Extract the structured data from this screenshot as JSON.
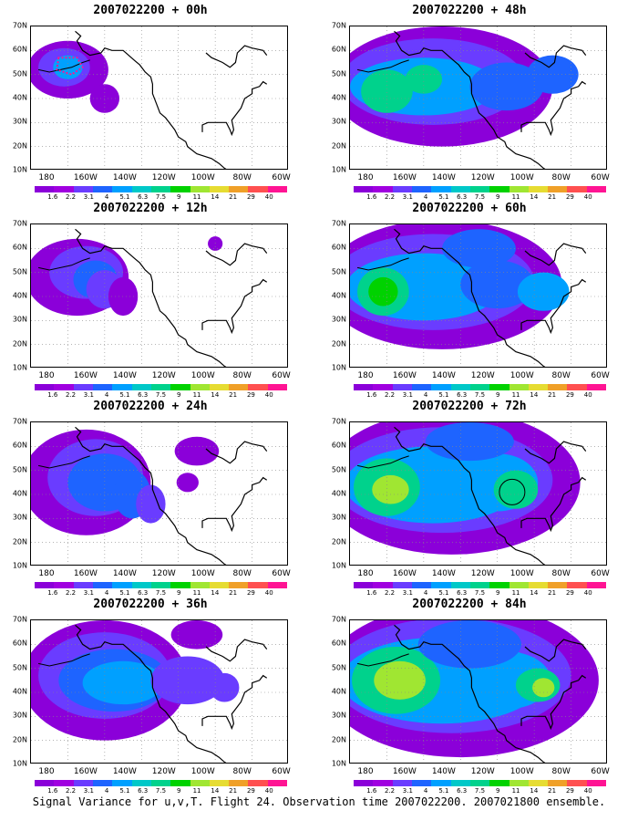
{
  "caption": "Signal Variance for u,v,T. Flight 24. Observation time 2007022200. 2007021800 ensemble.",
  "lat_labels": [
    "70N",
    "60N",
    "50N",
    "40N",
    "30N",
    "20N",
    "10N"
  ],
  "lon_labels": [
    "180",
    "160W",
    "140W",
    "120W",
    "100W",
    "80W",
    "60W"
  ],
  "colorbar": {
    "labels": [
      "1.6",
      "2.2",
      "3.1",
      "4",
      "5.1",
      "6.3",
      "7.5",
      "9",
      "11",
      "14",
      "21",
      "29",
      "40"
    ],
    "colors": [
      "#8b00d9",
      "#a000e0",
      "#6a3cff",
      "#1e64ff",
      "#00a0ff",
      "#00c8c8",
      "#00d28c",
      "#00d200",
      "#a0e632",
      "#e6dc32",
      "#f0a028",
      "#ff5050",
      "#ff1493"
    ]
  },
  "panels": [
    {
      "title": "2007022200 + 00h",
      "stage": 0
    },
    {
      "title": "2007022200 + 12h",
      "stage": 1
    },
    {
      "title": "2007022200 + 24h",
      "stage": 2
    },
    {
      "title": "2007022200 + 36h",
      "stage": 3
    },
    {
      "title": "2007022200 + 48h",
      "stage": 4
    },
    {
      "title": "2007022200 + 60h",
      "stage": 5
    },
    {
      "title": "2007022200 + 72h",
      "stage": 6
    },
    {
      "title": "2007022200 + 84h",
      "stage": 7
    }
  ]
}
